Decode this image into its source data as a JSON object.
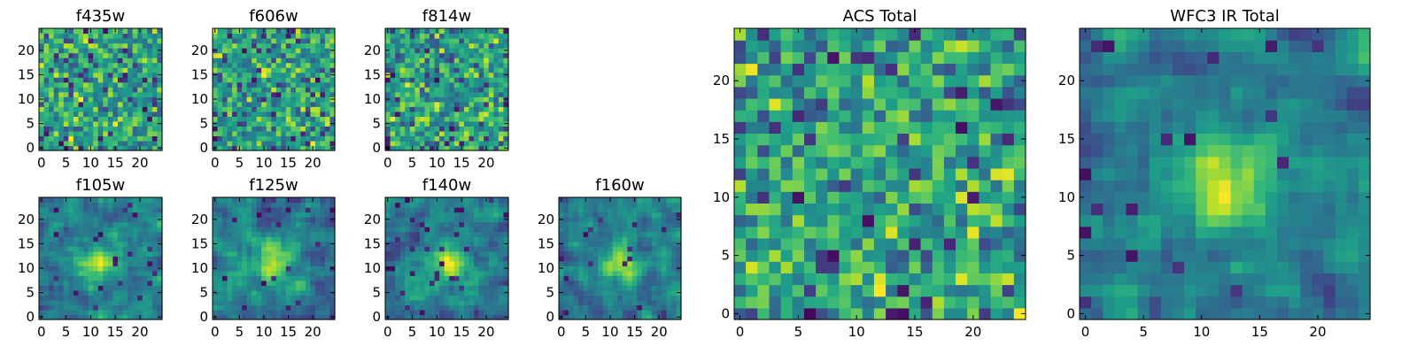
{
  "chart_data": [
    {
      "type": "heatmap",
      "title": "f435w",
      "x_ticks": [
        "0",
        "5",
        "10",
        "15",
        "20"
      ],
      "y_ticks": [
        "0",
        "5",
        "10",
        "15",
        "20"
      ],
      "xlim": [
        0,
        24
      ],
      "ylim": [
        0,
        24
      ],
      "colormap": "viridis",
      "pattern": "noise",
      "seed": 11
    },
    {
      "type": "heatmap",
      "title": "f606w",
      "x_ticks": [
        "0",
        "5",
        "10",
        "15",
        "20"
      ],
      "y_ticks": [
        "0",
        "5",
        "10",
        "15",
        "20"
      ],
      "xlim": [
        0,
        24
      ],
      "ylim": [
        0,
        24
      ],
      "colormap": "viridis",
      "pattern": "noise",
      "seed": 23
    },
    {
      "type": "heatmap",
      "title": "f814w",
      "x_ticks": [
        "0",
        "5",
        "10",
        "15",
        "20"
      ],
      "y_ticks": [
        "0",
        "5",
        "10",
        "15",
        "20"
      ],
      "xlim": [
        0,
        24
      ],
      "ylim": [
        0,
        24
      ],
      "colormap": "viridis",
      "pattern": "noise",
      "seed": 37
    },
    {
      "type": "heatmap",
      "title": "f105w",
      "x_ticks": [
        "0",
        "5",
        "10",
        "15",
        "20"
      ],
      "y_ticks": [
        "0",
        "5",
        "10",
        "15",
        "20"
      ],
      "xlim": [
        0,
        24
      ],
      "ylim": [
        0,
        24
      ],
      "colormap": "viridis",
      "pattern": "blob",
      "seed": 41
    },
    {
      "type": "heatmap",
      "title": "f125w",
      "x_ticks": [
        "0",
        "5",
        "10",
        "15",
        "20"
      ],
      "y_ticks": [
        "0",
        "5",
        "10",
        "15",
        "20"
      ],
      "xlim": [
        0,
        24
      ],
      "ylim": [
        0,
        24
      ],
      "colormap": "viridis",
      "pattern": "blob",
      "seed": 53
    },
    {
      "type": "heatmap",
      "title": "f140w",
      "x_ticks": [
        "0",
        "5",
        "10",
        "15",
        "20"
      ],
      "y_ticks": [
        "0",
        "5",
        "10",
        "15",
        "20"
      ],
      "xlim": [
        0,
        24
      ],
      "ylim": [
        0,
        24
      ],
      "colormap": "viridis",
      "pattern": "blob",
      "seed": 67
    },
    {
      "type": "heatmap",
      "title": "f160w",
      "x_ticks": [
        "0",
        "5",
        "10",
        "15",
        "20"
      ],
      "y_ticks": [
        "0",
        "5",
        "10",
        "15",
        "20"
      ],
      "xlim": [
        0,
        24
      ],
      "ylim": [
        0,
        24
      ],
      "colormap": "viridis",
      "pattern": "blob",
      "seed": 79
    },
    {
      "type": "heatmap",
      "title": "ACS Total",
      "x_ticks": [
        "0",
        "5",
        "10",
        "15",
        "20"
      ],
      "y_ticks": [
        "0",
        "5",
        "10",
        "15",
        "20"
      ],
      "xlim": [
        0,
        24
      ],
      "ylim": [
        0,
        24
      ],
      "colormap": "viridis",
      "pattern": "noise",
      "seed": 97
    },
    {
      "type": "heatmap",
      "title": "WFC3 IR Total",
      "x_ticks": [
        "0",
        "5",
        "10",
        "15",
        "20"
      ],
      "y_ticks": [
        "0",
        "5",
        "10",
        "15",
        "20"
      ],
      "xlim": [
        0,
        24
      ],
      "ylim": [
        0,
        24
      ],
      "colormap": "viridis",
      "pattern": "blob",
      "seed": 113
    }
  ]
}
